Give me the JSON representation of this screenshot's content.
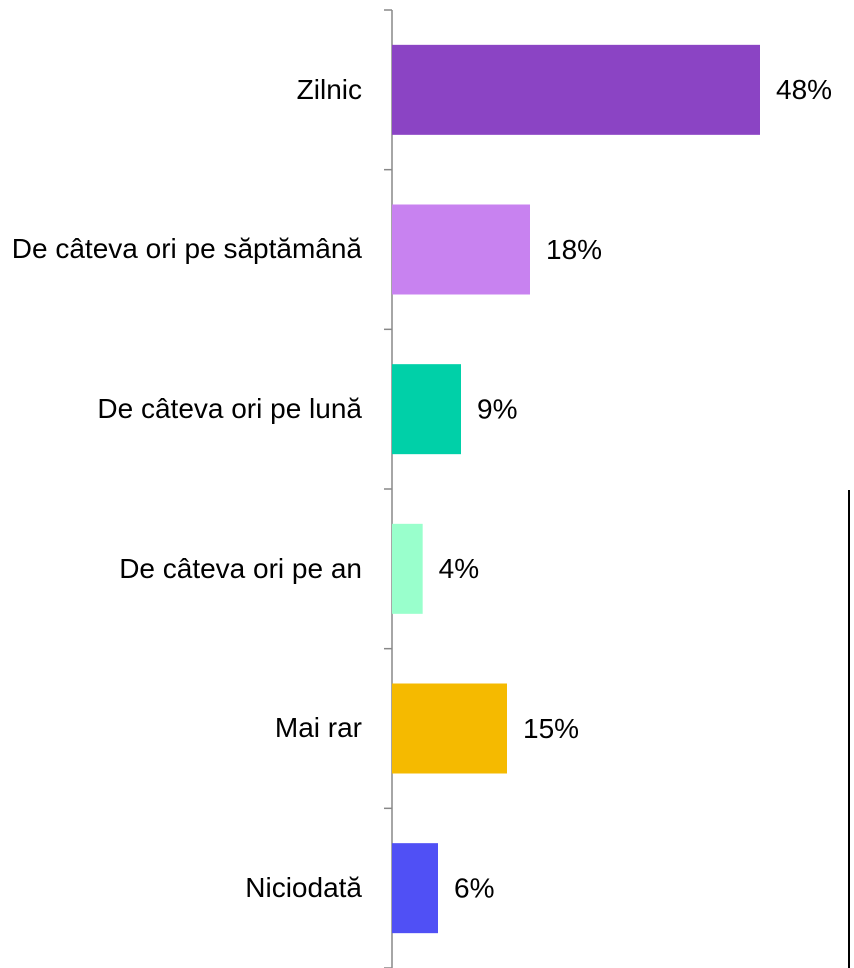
{
  "chart_data": {
    "type": "barh",
    "categories": [
      "Zilnic",
      "De câteva ori pe săptămână",
      "De câteva ori pe lună",
      "De câteva ori pe an",
      "Mai rar",
      "Niciodată"
    ],
    "values": [
      48,
      18,
      9,
      4,
      15,
      6
    ],
    "value_labels": [
      "48%",
      "18%",
      "9%",
      "4%",
      "15%",
      "6%"
    ],
    "colors": [
      "#8b44c4",
      "#c882f0",
      "#00d0a8",
      "#99ffcc",
      "#f5ba00",
      "#5050f5"
    ],
    "xlim": [
      0,
      60
    ]
  }
}
